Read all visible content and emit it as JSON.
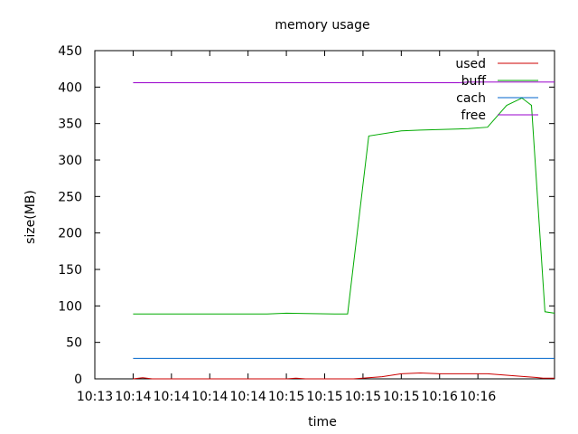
{
  "chart_data": {
    "type": "line",
    "title": "memory usage",
    "xlabel": "time",
    "ylabel": "size(MB)",
    "xlim": [
      0,
      24
    ],
    "ylim": [
      0,
      450
    ],
    "x_ticks": [
      {
        "pos": 0,
        "label": "10:13"
      },
      {
        "pos": 2,
        "label": "10:14"
      },
      {
        "pos": 4,
        "label": "10:14"
      },
      {
        "pos": 6,
        "label": "10:14"
      },
      {
        "pos": 8,
        "label": "10:14"
      },
      {
        "pos": 10,
        "label": "10:15"
      },
      {
        "pos": 12,
        "label": "10:15"
      },
      {
        "pos": 14,
        "label": "10:15"
      },
      {
        "pos": 16,
        "label": "10:15"
      },
      {
        "pos": 18,
        "label": "10:16"
      },
      {
        "pos": 20,
        "label": "10:16"
      }
    ],
    "y_ticks": [
      0,
      50,
      100,
      150,
      200,
      250,
      300,
      350,
      400,
      450
    ],
    "grid": false,
    "legend_position": "top-right",
    "series": [
      {
        "name": "used",
        "color": "#cc0000",
        "points": [
          [
            2,
            0
          ],
          [
            2.5,
            1.5
          ],
          [
            3,
            0
          ],
          [
            10,
            0
          ],
          [
            10.5,
            1
          ],
          [
            11,
            0
          ],
          [
            13.5,
            0
          ],
          [
            15,
            3
          ],
          [
            16,
            7
          ],
          [
            17,
            8
          ],
          [
            18,
            7
          ],
          [
            19,
            7
          ],
          [
            20,
            7
          ],
          [
            20.5,
            7
          ],
          [
            21.5,
            5
          ],
          [
            22.5,
            3
          ],
          [
            23,
            2
          ],
          [
            23.4,
            1
          ],
          [
            24,
            1
          ]
        ]
      },
      {
        "name": "buff",
        "color": "#00aa00",
        "points": [
          [
            2,
            89
          ],
          [
            9,
            89
          ],
          [
            10,
            90
          ],
          [
            11,
            89.5
          ],
          [
            12.5,
            89
          ],
          [
            13.2,
            89
          ],
          [
            14.3,
            333
          ],
          [
            16,
            340
          ],
          [
            17,
            341
          ],
          [
            19.5,
            343
          ],
          [
            20.5,
            345
          ],
          [
            21.5,
            375
          ],
          [
            22.3,
            385
          ],
          [
            22.8,
            375
          ],
          [
            23.5,
            92
          ],
          [
            24,
            90
          ]
        ]
      },
      {
        "name": "cach",
        "color": "#0066cc",
        "points": [
          [
            2,
            28
          ],
          [
            24,
            28
          ]
        ]
      },
      {
        "name": "free",
        "color": "#9900cc",
        "points": [
          [
            2,
            406
          ],
          [
            19,
            406
          ],
          [
            19.5,
            407
          ],
          [
            24,
            407
          ]
        ]
      }
    ]
  }
}
